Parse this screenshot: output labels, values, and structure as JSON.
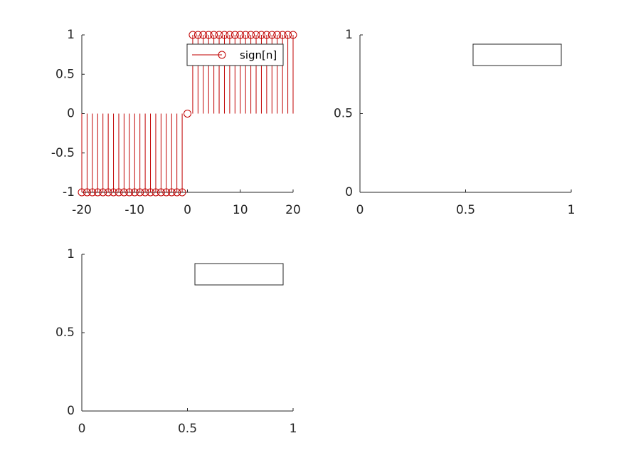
{
  "chart_data": [
    {
      "type": "stem",
      "x": [
        -20,
        -19,
        -18,
        -17,
        -16,
        -15,
        -14,
        -13,
        -12,
        -11,
        -10,
        -9,
        -8,
        -7,
        -6,
        -5,
        -4,
        -3,
        -2,
        -1,
        0,
        1,
        2,
        3,
        4,
        5,
        6,
        7,
        8,
        9,
        10,
        11,
        12,
        13,
        14,
        15,
        16,
        17,
        18,
        19,
        20
      ],
      "series": [
        {
          "name": "sign[n]",
          "color": "#c00000",
          "values": [
            -1,
            -1,
            -1,
            -1,
            -1,
            -1,
            -1,
            -1,
            -1,
            -1,
            -1,
            -1,
            -1,
            -1,
            -1,
            -1,
            -1,
            -1,
            -1,
            -1,
            0,
            1,
            1,
            1,
            1,
            1,
            1,
            1,
            1,
            1,
            1,
            1,
            1,
            1,
            1,
            1,
            1,
            1,
            1,
            1,
            1
          ]
        }
      ],
      "xlim": [
        -20,
        20
      ],
      "ylim": [
        -1,
        1
      ],
      "xticks": [
        -20,
        -10,
        0,
        10,
        20
      ],
      "yticks": [
        -1,
        -0.5,
        0,
        0.5,
        1
      ],
      "legend": "northeast"
    },
    {
      "type": "line",
      "series": [],
      "xlim": [
        0,
        1
      ],
      "ylim": [
        0,
        1
      ],
      "xticks": [
        0,
        0.5,
        1
      ],
      "yticks": [
        0,
        0.5,
        1
      ],
      "legend": "northeast"
    },
    {
      "type": "line",
      "series": [],
      "xlim": [
        0,
        1
      ],
      "ylim": [
        0,
        1
      ],
      "xticks": [
        0,
        0.5,
        1
      ],
      "yticks": [
        0,
        0.5,
        1
      ],
      "legend": "northeast"
    }
  ]
}
